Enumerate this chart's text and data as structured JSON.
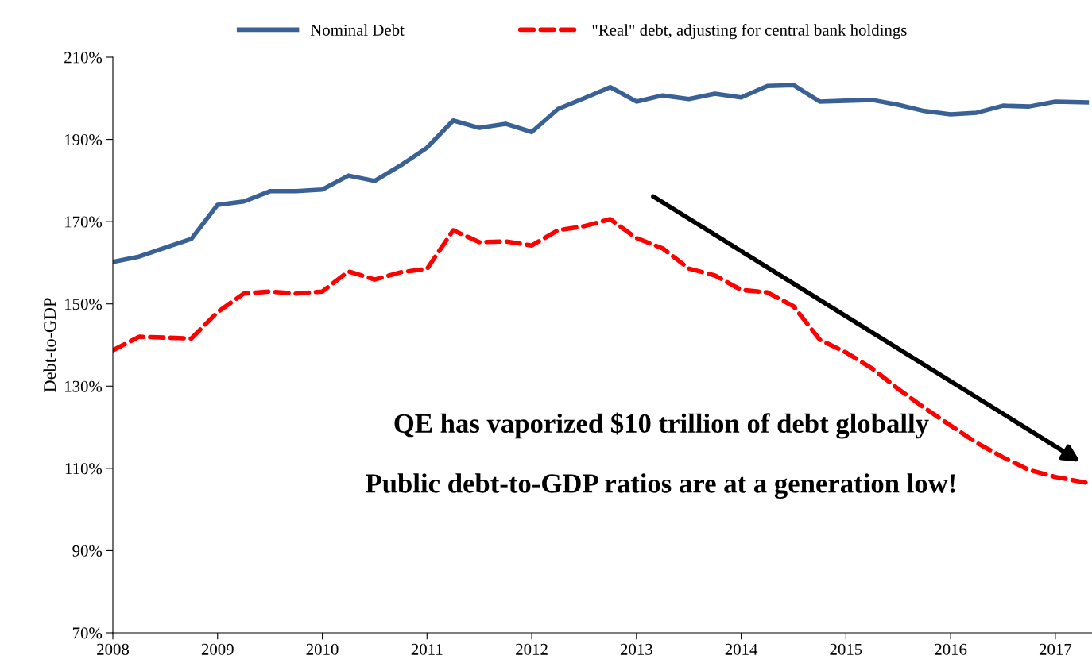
{
  "chart_data": {
    "type": "line",
    "ylabel": "Debt-to-GDP",
    "x": [
      2008.0,
      2008.25,
      2008.5,
      2008.75,
      2009.0,
      2009.25,
      2009.5,
      2009.75,
      2010.0,
      2010.25,
      2010.5,
      2010.75,
      2011.0,
      2011.25,
      2011.5,
      2011.75,
      2012.0,
      2012.25,
      2012.5,
      2012.75,
      2013.0,
      2013.25,
      2013.5,
      2013.75,
      2014.0,
      2014.25,
      2014.5,
      2014.75,
      2015.0,
      2015.25,
      2015.5,
      2015.75,
      2016.0,
      2016.25,
      2016.5,
      2016.75,
      2017.0,
      2017.3
    ],
    "series": [
      {
        "name": "Nominal Debt",
        "color": "#3a6195",
        "line_style": "solid",
        "values": [
          160.2,
          161.5,
          163.7,
          165.8,
          174.1,
          174.9,
          177.4,
          177.4,
          177.8,
          181.2,
          179.9,
          183.7,
          188.0,
          194.6,
          192.8,
          193.8,
          191.8,
          197.4,
          200.0,
          202.7,
          199.2,
          200.7,
          199.8,
          201.1,
          200.2,
          203.0,
          203.2,
          199.2,
          199.4,
          199.6,
          198.4,
          196.9,
          196.1,
          196.5,
          198.2,
          198.0,
          199.2,
          199.0
        ]
      },
      {
        "name": "\"Real\" debt, adjusting for central bank holdings",
        "color": "#ff0000",
        "line_style": "dashed",
        "values": [
          138.7,
          142.0,
          141.8,
          141.6,
          148.0,
          152.5,
          153.0,
          152.5,
          153.0,
          157.9,
          155.9,
          157.7,
          158.5,
          167.9,
          165.0,
          165.2,
          164.2,
          167.9,
          168.9,
          170.6,
          166.0,
          163.5,
          158.6,
          156.9,
          153.4,
          152.8,
          149.4,
          141.3,
          138.2,
          134.3,
          129.3,
          124.7,
          120.4,
          116.2,
          112.7,
          109.6,
          107.9,
          106.5
        ]
      }
    ],
    "xlim": [
      2008,
      2017.35
    ],
    "xticks": [
      2008,
      2009,
      2010,
      2011,
      2012,
      2013,
      2014,
      2015,
      2016,
      2017
    ],
    "ylim": [
      70,
      210
    ],
    "yticks": [
      {
        "value": 70,
        "label": "70%"
      },
      {
        "value": 90,
        "label": "90%"
      },
      {
        "value": 110,
        "label": "110%"
      },
      {
        "value": 130,
        "label": "130%"
      },
      {
        "value": 150,
        "label": "150%"
      },
      {
        "value": 170,
        "label": "170%"
      },
      {
        "value": 190,
        "label": "190%"
      },
      {
        "value": 210,
        "label": "210%"
      }
    ],
    "grid": false,
    "legend": "top",
    "marker": "none",
    "annotations": [
      "QE has vaporized $10 trillion of debt globally",
      "Public debt-to-GDP ratios are at a generation low!"
    ]
  }
}
